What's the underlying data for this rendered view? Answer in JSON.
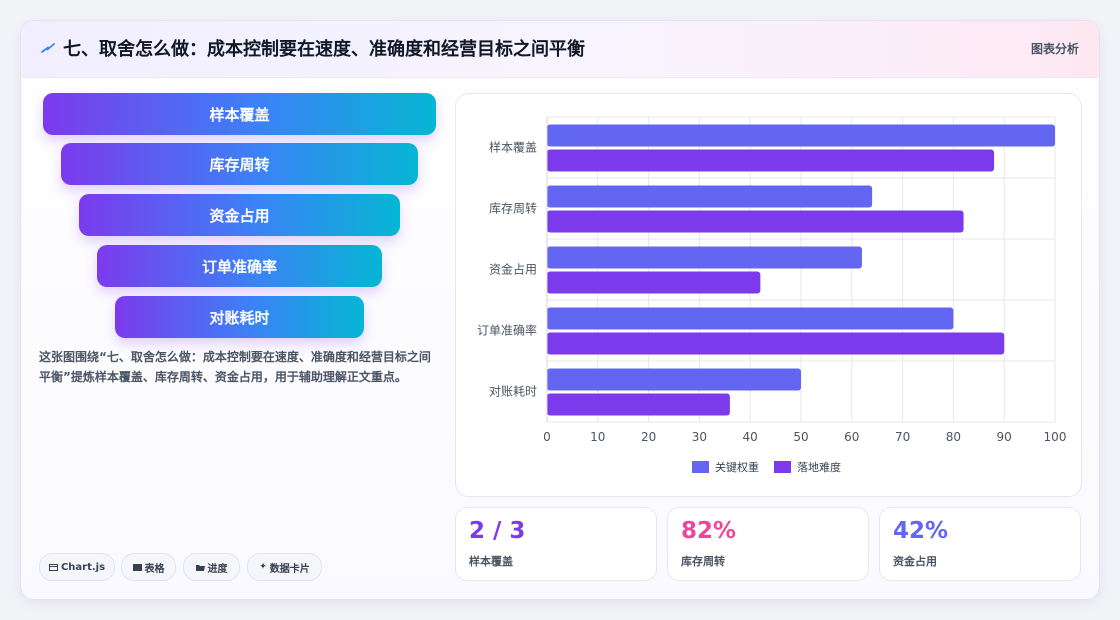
{
  "header": {
    "title": "七、取舍怎么做：成本控制要在速度、准确度和经营目标之间平衡",
    "tag": "图表分析"
  },
  "funnel": [
    "样本覆盖",
    "库存周转",
    "资金占用",
    "订单准确率",
    "对账耗时"
  ],
  "description": "这张图围绕“七、取舍怎么做：成本控制要在速度、准确度和经营目标之间平衡”提炼样本覆盖、库存周转、资金占用，用于辅助理解正文重点。",
  "chips": [
    {
      "label": "Chart.js",
      "icon": "window-icon"
    },
    {
      "label": "表格",
      "icon": "table-icon"
    },
    {
      "label": "进度",
      "icon": "folder-icon"
    },
    {
      "label": "数据卡片",
      "icon": "sparkle-icon"
    }
  ],
  "chart_data": {
    "type": "bar",
    "orientation": "horizontal",
    "categories": [
      "样本覆盖",
      "库存周转",
      "资金占用",
      "订单准确率",
      "对账耗时"
    ],
    "series": [
      {
        "name": "关键权重",
        "values": [
          100,
          64,
          62,
          80,
          50
        ],
        "color": "#6366f1"
      },
      {
        "name": "落地难度",
        "values": [
          88,
          82,
          42,
          90,
          36
        ],
        "color": "#7c3aed"
      }
    ],
    "xlim": [
      0,
      100
    ],
    "xticks": [
      0,
      10,
      20,
      30,
      40,
      50,
      60,
      70,
      80,
      90,
      100
    ],
    "grid": true,
    "legend": "bottom"
  },
  "stats": [
    {
      "value": "2 / 3",
      "label": "样本覆盖",
      "color": "#7c3aed"
    },
    {
      "value": "82%",
      "label": "库存周转",
      "color": "#ec4899"
    },
    {
      "value": "42%",
      "label": "资金占用",
      "color": "#6366f1"
    }
  ]
}
